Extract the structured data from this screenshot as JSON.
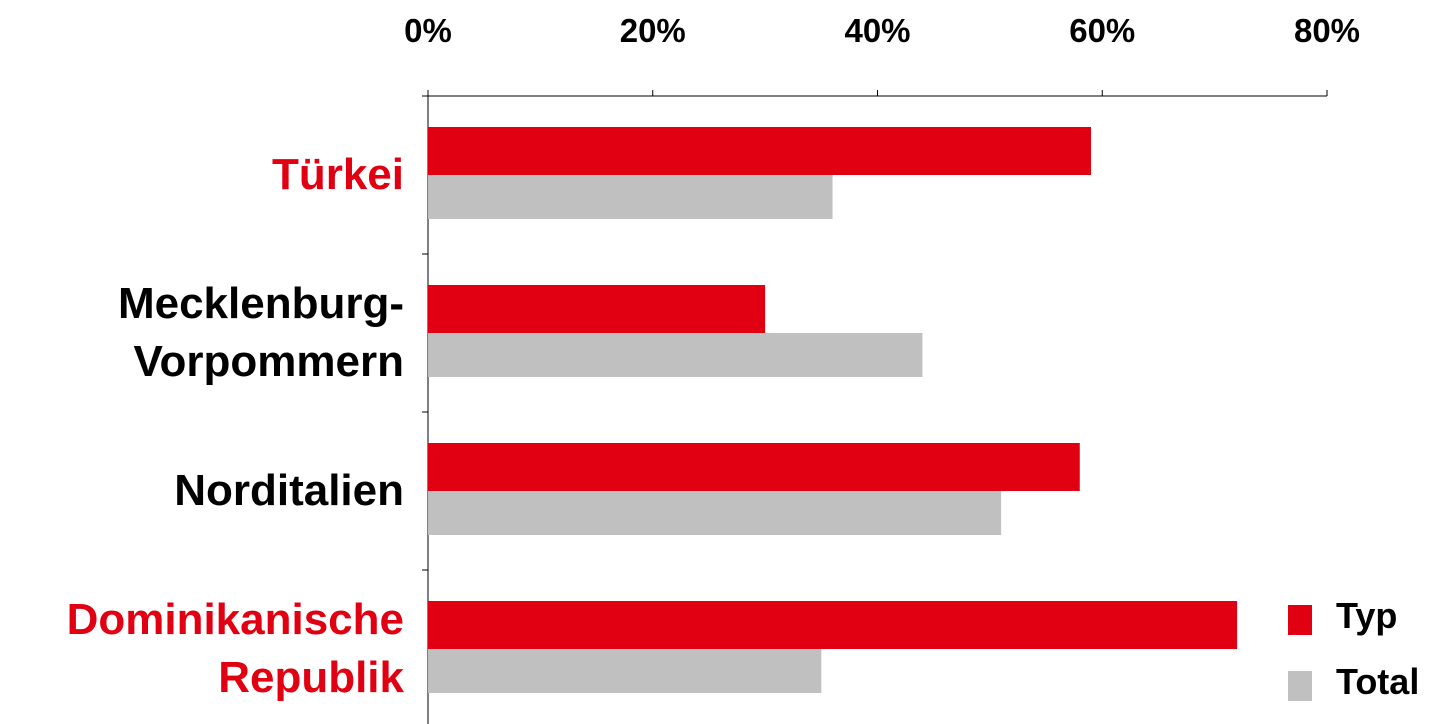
{
  "chart_data": {
    "type": "bar",
    "orientation": "horizontal",
    "categories": [
      {
        "lines": [
          "Türkei"
        ],
        "color": "#e10012"
      },
      {
        "lines": [
          "Mecklenburg-",
          "Vorpommern"
        ],
        "color": "#000000"
      },
      {
        "lines": [
          "Norditalien"
        ],
        "color": "#000000"
      },
      {
        "lines": [
          "Dominikanische",
          "Republik"
        ],
        "color": "#e10012"
      }
    ],
    "series": [
      {
        "name": "Typ",
        "color": "#e10012",
        "values": [
          59,
          30,
          58,
          72
        ]
      },
      {
        "name": "Total",
        "color": "#c0c0c0",
        "values": [
          36,
          44,
          51,
          35
        ]
      }
    ],
    "xticks": [
      "0%",
      "20%",
      "40%",
      "60%",
      "80%"
    ],
    "xlim": [
      0,
      80
    ],
    "x_axis_position": "top",
    "grid": false,
    "legend_position": "bottom-right"
  }
}
